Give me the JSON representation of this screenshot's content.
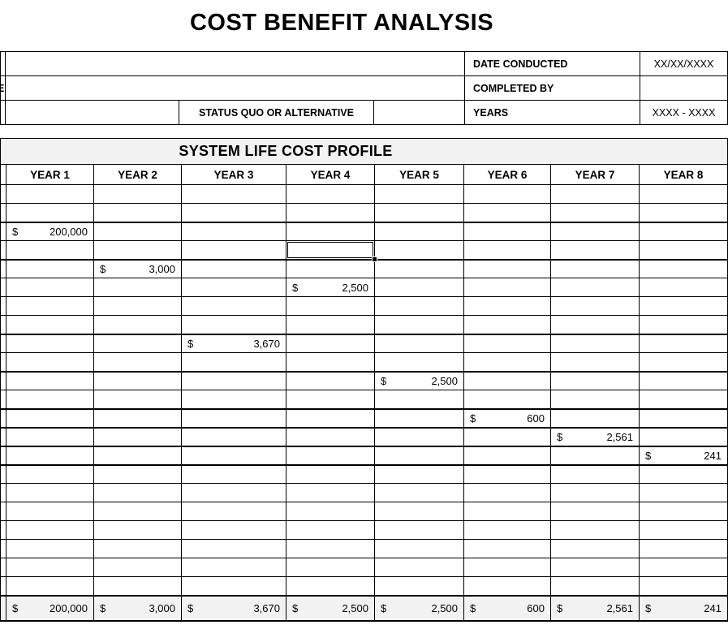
{
  "page_title": "COST BENEFIT ANALYSIS",
  "currency_symbol": "$",
  "info_panel": {
    "left_edge_fragment": "E",
    "fields": [
      {
        "label": "DATE CONDUCTED",
        "value": "XX/XX/XXXX"
      },
      {
        "label": "COMPLETED BY",
        "value": ""
      },
      {
        "label": "YEARS",
        "value": "XXXX - XXXX"
      }
    ],
    "status_quo_label": "STATUS QUO OR ALTERNATIVE"
  },
  "section": {
    "title": "SYSTEM LIFE COST PROFILE",
    "columns": [
      "YEAR 1",
      "YEAR 2",
      "YEAR 3",
      "YEAR 4",
      "YEAR 5",
      "YEAR 6",
      "YEAR 7",
      "YEAR 8"
    ],
    "rows": [
      [
        "",
        "",
        "",
        "",
        "",
        "",
        "",
        ""
      ],
      [
        "",
        "",
        "",
        "",
        "",
        "",
        "",
        ""
      ],
      [
        "200,000",
        "",
        "",
        "",
        "",
        "",
        "",
        ""
      ],
      [
        "",
        "",
        "",
        "",
        "",
        "",
        "",
        ""
      ],
      [
        "",
        "3,000",
        "",
        "",
        "",
        "",
        "",
        ""
      ],
      [
        "",
        "",
        "",
        "2,500",
        "",
        "",
        "",
        ""
      ],
      [
        "",
        "",
        "",
        "",
        "",
        "",
        "",
        ""
      ],
      [
        "",
        "",
        "",
        "",
        "",
        "",
        "",
        ""
      ],
      [
        "",
        "",
        "3,670",
        "",
        "",
        "",
        "",
        ""
      ],
      [
        "",
        "",
        "",
        "",
        "",
        "",
        "",
        ""
      ],
      [
        "",
        "",
        "",
        "",
        "2,500",
        "",
        "",
        ""
      ],
      [
        "",
        "",
        "",
        "",
        "",
        "",
        "",
        ""
      ],
      [
        "",
        "",
        "",
        "",
        "",
        "600",
        "",
        ""
      ],
      [
        "",
        "",
        "",
        "",
        "",
        "",
        "2,561",
        ""
      ],
      [
        "",
        "",
        "",
        "",
        "",
        "",
        "",
        "241"
      ],
      [
        "",
        "",
        "",
        "",
        "",
        "",
        "",
        ""
      ],
      [
        "",
        "",
        "",
        "",
        "",
        "",
        "",
        ""
      ],
      [
        "",
        "",
        "",
        "",
        "",
        "",
        "",
        ""
      ],
      [
        "",
        "",
        "",
        "",
        "",
        "",
        "",
        ""
      ],
      [
        "",
        "",
        "",
        "",
        "",
        "",
        "",
        ""
      ],
      [
        "",
        "",
        "",
        "",
        "",
        "",
        "",
        ""
      ],
      [
        "",
        "",
        "",
        "",
        "",
        "",
        "",
        ""
      ]
    ],
    "totals": [
      "200,000",
      "3,000",
      "3,670",
      "2,500",
      "2,500",
      "600",
      "2,561",
      "241"
    ],
    "selected_cell": {
      "row": 4,
      "column": 4
    },
    "colors": {
      "band_bg": "#f2f2f2",
      "total_row_bg": "#f2f2f2",
      "grid_line": "#000000"
    }
  }
}
